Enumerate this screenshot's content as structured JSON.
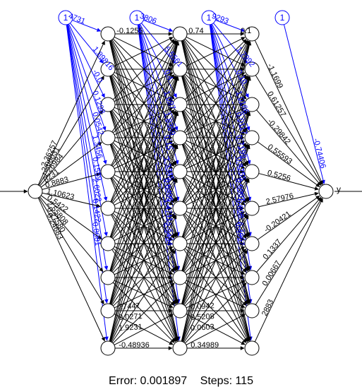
{
  "colors": {
    "bias": "#0000ff",
    "weight": "#000000",
    "node_stroke": "#000000",
    "node_fill": "#ffffff",
    "background": "#ffffff"
  },
  "bias_label": "1",
  "output_label": "y",
  "footer": {
    "error_text": "Error: 0.001897",
    "steps_text": "Steps: 115"
  },
  "bias_weights_layer1": [
    "4731",
    "1.89816",
    "-0.0",
    "0.1298",
    "0.0542",
    "1.3456",
    "0.1589",
    "2.6022",
    "0.1422",
    "0.8081"
  ],
  "bias_weights_layer2": [
    "3806",
    "5.5561",
    "0.4",
    "1.097",
    "1.8359",
    "0.15",
    "1.3345",
    "0.8496",
    "1.4711",
    "2.3494"
  ],
  "bias_weights_layer3": [
    "9293",
    "1.7992",
    "0.10",
    "1.0166",
    "0.0117",
    "0.7199",
    "0.4255",
    "0.9967",
    "0.808",
    "0.4967"
  ],
  "bias_weight_output": "-0.74406",
  "input_weights": [
    "2.36257",
    "2.08031",
    "1.26984",
    "8231",
    "0.8883",
    "1.10623",
    "0.5422",
    "2.55808",
    "0.27580",
    "0.24683"
  ],
  "hidden1_top_weight": "-0.1255",
  "hidden1_bottom_weights": [
    "27447",
    "0.0271",
    "1.9231",
    "-0.48936"
  ],
  "hidden2_top_weight": "0.74",
  "hidden2_bottom_weights": [
    "0.0942",
    "0.5208",
    "0.0603",
    "0.34989"
  ],
  "hidden3_top_weight": "0.1",
  "output_weights": [
    "-1.1699",
    "0.61257",
    "-0.29842",
    "0.55593",
    "0.5256",
    "2.57976",
    "-0.20421",
    "0.1337",
    "0.00667",
    "2883"
  ]
}
